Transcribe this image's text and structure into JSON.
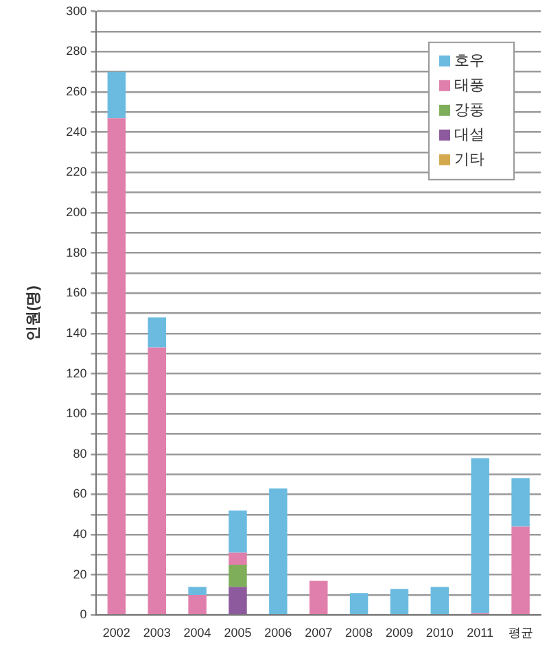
{
  "chart_data": {
    "type": "bar",
    "stacked": true,
    "ylabel": "인원(명)",
    "categories": [
      "2002",
      "2003",
      "2004",
      "2005",
      "2006",
      "2007",
      "2008",
      "2009",
      "2010",
      "2011",
      "평균"
    ],
    "series": [
      {
        "name": "기타",
        "color": "#d4a84c",
        "values": [
          0,
          0,
          0,
          0,
          0,
          0,
          0,
          0,
          0,
          0,
          0
        ]
      },
      {
        "name": "대설",
        "color": "#8e5a9e",
        "values": [
          0,
          0,
          0,
          14,
          0,
          0,
          0,
          0,
          0,
          0,
          0
        ]
      },
      {
        "name": "강풍",
        "color": "#7fae5a",
        "values": [
          0,
          0,
          0,
          11,
          0,
          null,
          0,
          0,
          0,
          0,
          0
        ]
      },
      {
        "name": "태풍",
        "color": "#e07fab",
        "values": [
          247,
          133,
          10,
          6,
          0,
          17,
          0,
          0,
          0,
          1,
          44
        ]
      },
      {
        "name": "호우",
        "color": "#6bbbe0",
        "values": [
          23,
          15,
          4,
          21,
          63,
          0,
          11,
          13,
          14,
          77,
          24
        ]
      }
    ],
    "ylim": [
      0,
      300
    ],
    "yticks": [
      0,
      {
        "value": 10,
        "label": null
      },
      20,
      {
        "value": 30,
        "label": null
      },
      40,
      {
        "value": 50,
        "label": null
      },
      60,
      {
        "value": 70,
        "label": null
      },
      80,
      {
        "value": 90,
        "label": null
      },
      100,
      {
        "value": 110,
        "label": null
      },
      120,
      {
        "value": 130,
        "label": null
      },
      140,
      {
        "value": 150,
        "label": null
      },
      160,
      {
        "value": 170,
        "label": null
      },
      180,
      {
        "value": 190,
        "label": null
      },
      200,
      {
        "value": 210,
        "label": null
      },
      220,
      {
        "value": 230,
        "label": null
      },
      240,
      {
        "value": 250,
        "label": null
      },
      260,
      {
        "value": 270,
        "label": null
      },
      280,
      {
        "value": 290,
        "label": null
      },
      300
    ],
    "grid": "y",
    "legend": "top right"
  }
}
